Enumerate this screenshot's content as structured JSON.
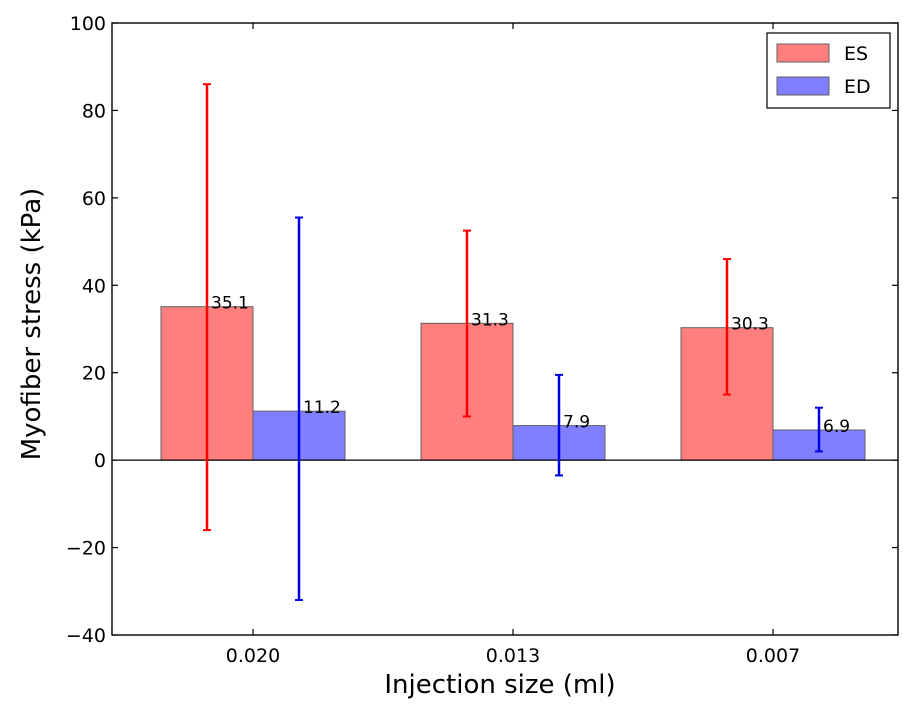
{
  "chart_data": {
    "type": "bar",
    "title": "",
    "xlabel": "Injection size (ml)",
    "ylabel": "Myofiber stress (kPa)",
    "categories": [
      "0.020",
      "0.013",
      "0.007"
    ],
    "ylim": [
      -40,
      100
    ],
    "yticks": [
      -40,
      -20,
      0,
      20,
      40,
      60,
      80,
      100
    ],
    "ytick_labels": [
      "−40",
      "−20",
      "0",
      "20",
      "40",
      "60",
      "80",
      "100"
    ],
    "grid": false,
    "legend_position": "top-right",
    "series": [
      {
        "name": "ES",
        "color": "#ff7f7f",
        "edge_color": "#606060",
        "error_color": "#ff0000",
        "values": [
          35.1,
          31.3,
          30.3
        ],
        "labels": [
          "35.1",
          "31.3",
          "30.3"
        ],
        "error_low": [
          -16,
          10,
          15
        ],
        "error_high": [
          86,
          52.5,
          46
        ]
      },
      {
        "name": "ED",
        "color": "#7f7fff",
        "edge_color": "#606060",
        "error_color": "#0000e6",
        "values": [
          11.2,
          7.9,
          6.9
        ],
        "labels": [
          "11.2",
          "7.9",
          "6.9"
        ],
        "error_low": [
          -32,
          -3.5,
          2
        ],
        "error_high": [
          55.5,
          19.5,
          12
        ]
      }
    ]
  }
}
